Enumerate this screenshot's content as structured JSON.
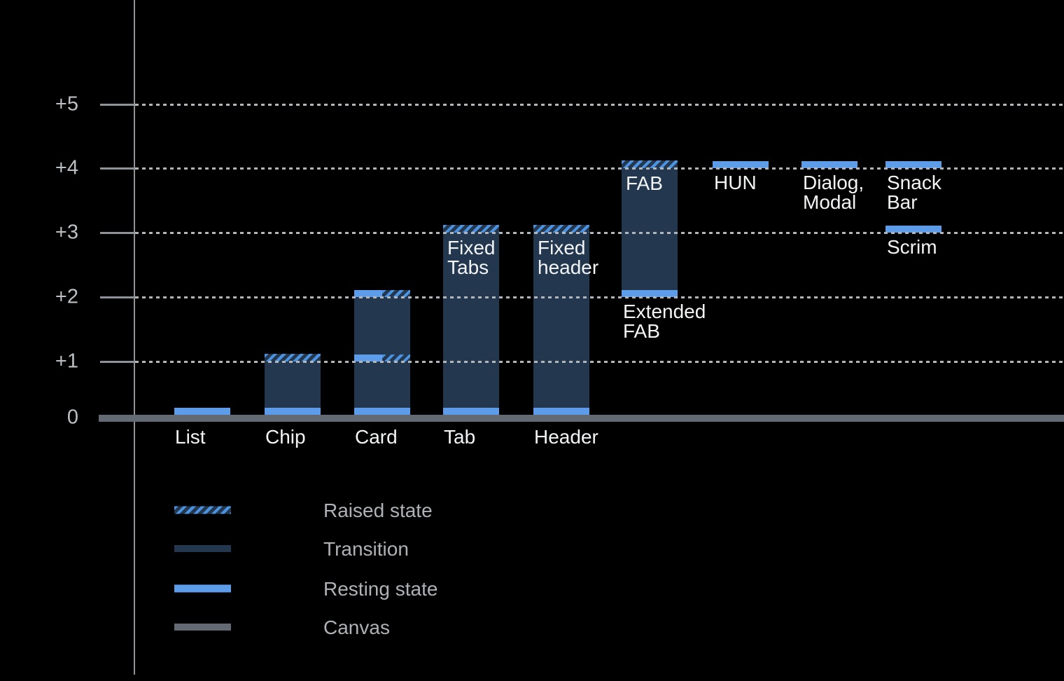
{
  "chart_data": {
    "type": "bar",
    "title": "",
    "y_axis": {
      "tick_labels": [
        "+5",
        "+4",
        "+3",
        "+2",
        "+1",
        "0"
      ],
      "tick_values": [
        5,
        4,
        3,
        2,
        1,
        0
      ],
      "ylim": [
        0,
        5.5
      ],
      "grid": "dotted horizontal lines at +1..+5, solid canvas line at 0"
    },
    "items": [
      {
        "key": "list",
        "axis_label": "List",
        "segments": [
          {
            "kind": "resting",
            "level": 0
          }
        ]
      },
      {
        "key": "chip",
        "axis_label": "Chip",
        "segments": [
          {
            "kind": "resting",
            "level": 0
          },
          {
            "kind": "transition",
            "from": 0,
            "to": 1
          },
          {
            "kind": "raised",
            "level": 1
          }
        ]
      },
      {
        "key": "card",
        "axis_label": "Card",
        "segments": [
          {
            "kind": "resting",
            "level": 0
          },
          {
            "kind": "transition",
            "from": 0,
            "to": 2
          },
          {
            "kind": "resting-raised",
            "level": 1
          },
          {
            "kind": "resting-raised",
            "level": 2
          }
        ]
      },
      {
        "key": "tab",
        "axis_label": "Tab",
        "bar_label": "Fixed\nTabs",
        "segments": [
          {
            "kind": "resting",
            "level": 0
          },
          {
            "kind": "transition",
            "from": 0,
            "to": 3
          },
          {
            "kind": "raised",
            "level": 3
          }
        ]
      },
      {
        "key": "header",
        "axis_label": "Header",
        "bar_label": "Fixed\nheader",
        "segments": [
          {
            "kind": "resting",
            "level": 0
          },
          {
            "kind": "transition",
            "from": 0,
            "to": 3
          },
          {
            "kind": "raised",
            "level": 3
          }
        ]
      },
      {
        "key": "extended-fab",
        "below_label": "Extended\nFAB",
        "below_label_level": 2,
        "bar_label": "FAB",
        "segments": [
          {
            "kind": "resting",
            "level": 2
          },
          {
            "kind": "transition",
            "from": 2,
            "to": 4
          },
          {
            "kind": "raised",
            "level": 4
          }
        ]
      },
      {
        "key": "hun",
        "below_label": "HUN",
        "below_label_level": 4,
        "segments": [
          {
            "kind": "resting",
            "level": 4
          }
        ]
      },
      {
        "key": "dialog-modal",
        "below_label": "Dialog,\nModal",
        "below_label_level": 4,
        "segments": [
          {
            "kind": "resting",
            "level": 4
          }
        ]
      },
      {
        "key": "snack-bar",
        "below_label": "Snack Bar",
        "below_label_level": 4,
        "segments": [
          {
            "kind": "resting",
            "level": 4
          }
        ]
      },
      {
        "key": "scrim",
        "below_label": "Scrim",
        "below_label_level": 3,
        "segments": [
          {
            "kind": "resting",
            "level": 3
          }
        ]
      }
    ],
    "legend": [
      {
        "key": "raised",
        "label": "Raised state",
        "swatch": "raised"
      },
      {
        "key": "transition",
        "label": "Transition",
        "swatch": "transition"
      },
      {
        "key": "resting",
        "label": "Resting state",
        "swatch": "resting"
      },
      {
        "key": "canvas",
        "label": "Canvas",
        "swatch": "canvas"
      }
    ],
    "colors": {
      "background": "#000000",
      "resting": "#5c9ce8",
      "transition": "#23374f",
      "raised_stripe": "#4b92e0",
      "canvas": "#646a73",
      "axis": "#8e939a",
      "gridline": "#b2b6bb",
      "label": "#f3f4f5",
      "axis_label": "#bcc0c4",
      "muted_label": "#aeb2b7"
    }
  }
}
